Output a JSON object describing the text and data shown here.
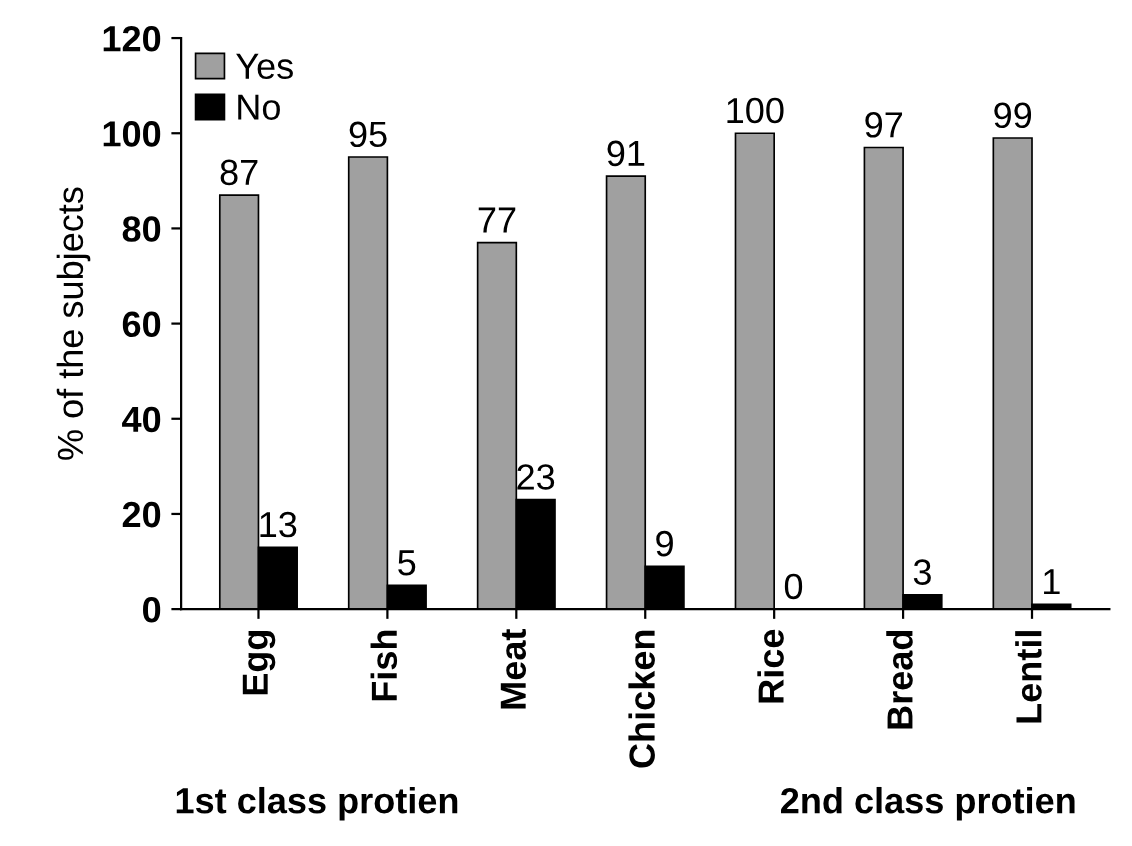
{
  "chart_data": {
    "type": "bar",
    "ylabel": "% of the subjects",
    "categories": [
      "Egg",
      "Fish",
      "Meat",
      "Chicken",
      "Rice",
      "Bread",
      "Lentil"
    ],
    "series": [
      {
        "name": "Yes",
        "color": "#a0a0a0",
        "values": [
          87,
          95,
          77,
          91,
          100,
          97,
          99
        ]
      },
      {
        "name": "No",
        "color": "#000000",
        "values": [
          13,
          5,
          23,
          9,
          0,
          3,
          1
        ]
      }
    ],
    "ylim": [
      0,
      120
    ],
    "yticks": [
      0,
      20,
      40,
      60,
      80,
      100,
      120
    ],
    "data_labels": true,
    "legend": "top left",
    "grid": false,
    "annotations": [
      "1st class protien",
      "2nd class protien"
    ]
  }
}
